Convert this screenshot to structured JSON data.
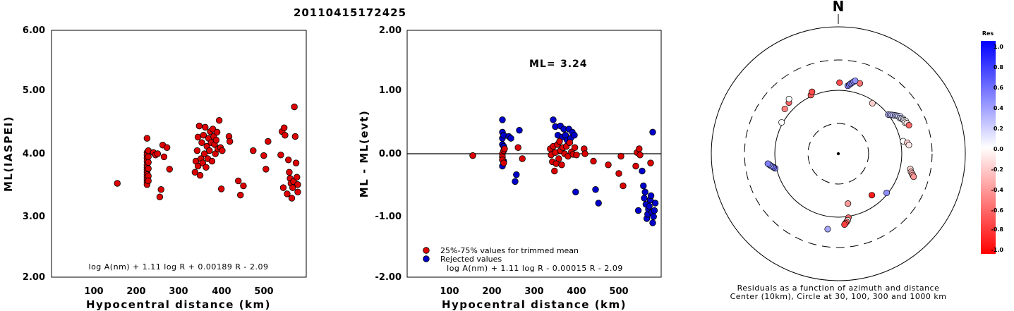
{
  "title": "20110415172425",
  "colors": {
    "event": "#dd0000",
    "rejected": "#0000cc",
    "positive": "#0000ff",
    "negative": "#ff0000"
  },
  "chart_data": [
    {
      "type": "scatter",
      "name_hint": "left",
      "xlabel": "Hypocentral distance (km)",
      "ylabel": "ML(IASPEI)",
      "xlim": [
        0,
        600
      ],
      "ylim": [
        2.0,
        6.0
      ],
      "xticks": [
        "100",
        "200",
        "300",
        "400",
        "500"
      ],
      "yticks": [
        "2.00",
        "3.00",
        "4.00",
        "5.00",
        "6.00"
      ],
      "formula": "log A(nm) + 1.11 log R + 0.00189 R - 2.09",
      "points": [
        [
          155,
          3.52
        ],
        [
          225,
          4.25
        ],
        [
          225,
          4.02
        ],
        [
          225,
          3.98
        ],
        [
          225,
          3.93
        ],
        [
          225,
          3.88
        ],
        [
          225,
          3.82
        ],
        [
          225,
          3.78
        ],
        [
          225,
          3.74
        ],
        [
          225,
          3.7
        ],
        [
          225,
          3.66
        ],
        [
          225,
          3.62
        ],
        [
          225,
          3.58
        ],
        [
          225,
          3.54
        ],
        [
          225,
          3.5
        ],
        [
          228,
          4.05
        ],
        [
          228,
          3.95
        ],
        [
          228,
          3.86
        ],
        [
          228,
          3.76
        ],
        [
          228,
          3.64
        ],
        [
          228,
          3.56
        ],
        [
          240,
          4.02
        ],
        [
          245,
          3.98
        ],
        [
          250,
          4.0
        ],
        [
          255,
          3.3
        ],
        [
          258,
          3.42
        ],
        [
          262,
          4.14
        ],
        [
          265,
          3.95
        ],
        [
          272,
          4.1
        ],
        [
          278,
          3.75
        ],
        [
          338,
          3.7
        ],
        [
          340,
          3.88
        ],
        [
          343,
          4.05
        ],
        [
          345,
          4.27
        ],
        [
          345,
          3.8
        ],
        [
          348,
          4.45
        ],
        [
          350,
          3.65
        ],
        [
          352,
          3.92
        ],
        [
          354,
          4.18
        ],
        [
          356,
          3.85
        ],
        [
          358,
          4.3
        ],
        [
          360,
          4.0
        ],
        [
          362,
          4.43
        ],
        [
          364,
          3.78
        ],
        [
          366,
          4.12
        ],
        [
          368,
          3.92
        ],
        [
          370,
          4.25
        ],
        [
          372,
          4.05
        ],
        [
          374,
          4.36
        ],
        [
          376,
          4.18
        ],
        [
          378,
          3.88
        ],
        [
          380,
          4.4
        ],
        [
          382,
          4.28
        ],
        [
          384,
          4.15
        ],
        [
          386,
          4.0
        ],
        [
          388,
          4.22
        ],
        [
          390,
          4.35
        ],
        [
          392,
          4.08
        ],
        [
          395,
          4.54
        ],
        [
          398,
          4.1
        ],
        [
          400,
          3.43
        ],
        [
          402,
          4.05
        ],
        [
          418,
          4.28
        ],
        [
          420,
          4.2
        ],
        [
          440,
          3.56
        ],
        [
          445,
          3.33
        ],
        [
          452,
          3.48
        ],
        [
          475,
          4.05
        ],
        [
          500,
          3.97
        ],
        [
          505,
          3.75
        ],
        [
          510,
          4.2
        ],
        [
          540,
          3.98
        ],
        [
          543,
          4.36
        ],
        [
          546,
          3.45
        ],
        [
          548,
          4.42
        ],
        [
          550,
          4.3
        ],
        [
          555,
          3.35
        ],
        [
          558,
          3.9
        ],
        [
          560,
          3.7
        ],
        [
          562,
          3.6
        ],
        [
          564,
          3.52
        ],
        [
          566,
          3.28
        ],
        [
          568,
          3.45
        ],
        [
          570,
          3.55
        ],
        [
          572,
          4.76
        ],
        [
          574,
          4.28
        ],
        [
          576,
          3.85
        ],
        [
          578,
          3.62
        ],
        [
          580,
          3.38
        ],
        [
          580,
          3.5
        ]
      ]
    },
    {
      "type": "scatter",
      "name_hint": "middle",
      "xlabel": "Hypocentral distance (km)",
      "ylabel": "ML - ML(evt)",
      "xlim": [
        0,
        600
      ],
      "ylim": [
        -2.0,
        2.0
      ],
      "xticks": [
        "100",
        "200",
        "300",
        "400",
        "500"
      ],
      "yticks": [
        "-2.00",
        "-1.00",
        "0.00",
        "1.00",
        "2.00"
      ],
      "ml_label": "ML=",
      "ml_value": "3.24",
      "formula": "log A(nm) + 1.11 log R - 0.00015 R - 2.09",
      "legend": [
        "25%-75% values for trimmed mean",
        "Rejected values"
      ],
      "accepted": [
        [
          155,
          -0.03
        ],
        [
          225,
          0.0
        ],
        [
          225,
          -0.05
        ],
        [
          225,
          -0.1
        ],
        [
          228,
          0.05
        ],
        [
          228,
          -0.15
        ],
        [
          230,
          0.08
        ],
        [
          262,
          0.1
        ],
        [
          272,
          -0.08
        ],
        [
          338,
          0.08
        ],
        [
          340,
          -0.02
        ],
        [
          343,
          -0.13
        ],
        [
          345,
          0.12
        ],
        [
          348,
          -0.28
        ],
        [
          350,
          0.02
        ],
        [
          352,
          -0.16
        ],
        [
          355,
          0.15
        ],
        [
          358,
          -0.08
        ],
        [
          360,
          0.2
        ],
        [
          362,
          0.05
        ],
        [
          365,
          -0.18
        ],
        [
          368,
          0.1
        ],
        [
          372,
          0.0
        ],
        [
          376,
          0.12
        ],
        [
          380,
          -0.04
        ],
        [
          384,
          0.18
        ],
        [
          388,
          0.03
        ],
        [
          392,
          -0.01
        ],
        [
          396,
          0.1
        ],
        [
          400,
          -0.02
        ],
        [
          418,
          0.08
        ],
        [
          420,
          0.0
        ],
        [
          440,
          -0.12
        ],
        [
          475,
          -0.18
        ],
        [
          500,
          -0.32
        ],
        [
          505,
          -0.04
        ],
        [
          510,
          -0.52
        ],
        [
          540,
          -0.2
        ],
        [
          543,
          0.02
        ],
        [
          548,
          0.08
        ],
        [
          550,
          -0.02
        ],
        [
          575,
          -0.15
        ]
      ],
      "rejected": [
        [
          225,
          0.55
        ],
        [
          225,
          0.35
        ],
        [
          225,
          0.25
        ],
        [
          225,
          0.15
        ],
        [
          225,
          -0.2
        ],
        [
          228,
          0.3
        ],
        [
          228,
          0.12
        ],
        [
          228,
          -0.12
        ],
        [
          240,
          0.28
        ],
        [
          245,
          0.25
        ],
        [
          255,
          -0.45
        ],
        [
          258,
          -0.34
        ],
        [
          265,
          0.38
        ],
        [
          345,
          0.55
        ],
        [
          350,
          0.44
        ],
        [
          356,
          0.3
        ],
        [
          362,
          0.45
        ],
        [
          366,
          0.27
        ],
        [
          370,
          0.4
        ],
        [
          374,
          0.3
        ],
        [
          378,
          0.22
        ],
        [
          382,
          0.4
        ],
        [
          386,
          0.25
        ],
        [
          390,
          0.35
        ],
        [
          395,
          0.3
        ],
        [
          398,
          -0.62
        ],
        [
          445,
          -0.58
        ],
        [
          452,
          -0.8
        ],
        [
          546,
          -0.92
        ],
        [
          555,
          -0.28
        ],
        [
          558,
          -0.52
        ],
        [
          560,
          -0.72
        ],
        [
          562,
          -0.62
        ],
        [
          564,
          -0.82
        ],
        [
          566,
          -1.05
        ],
        [
          568,
          -0.98
        ],
        [
          570,
          -0.9
        ],
        [
          572,
          -0.85
        ],
        [
          574,
          -0.75
        ],
        [
          576,
          -0.68
        ],
        [
          578,
          -0.95
        ],
        [
          580,
          0.35
        ],
        [
          580,
          -1.12
        ],
        [
          582,
          -1.02
        ],
        [
          584,
          -0.92
        ],
        [
          586,
          -0.8
        ]
      ]
    },
    {
      "type": "scatter",
      "name_hint": "polar",
      "north_label": "N",
      "caption": [
        "Residuals as a function of azimuth and distance",
        "Center (10km), Circle at 30, 100, 300 and 1000 km"
      ],
      "colorbar_title": "Res",
      "colorbar_ticks": [
        "1.0",
        "0.8",
        "0.6",
        "0.4",
        "0.2",
        "0.0",
        "-0.2",
        "-0.4",
        "-0.6",
        "-0.8",
        "-1.0"
      ],
      "rings_km": [
        30,
        100,
        300,
        1000
      ],
      "stations": [
        [
          1,
          0.56,
          -0.7
        ],
        [
          17,
          0.58,
          -0.55
        ],
        [
          34,
          0.48,
          -0.2
        ],
        [
          52,
          0.5,
          0.3
        ],
        [
          53,
          0.51,
          0.28
        ],
        [
          54,
          0.52,
          0.26
        ],
        [
          55,
          0.53,
          0.25
        ],
        [
          56,
          0.54,
          0.3
        ],
        [
          57,
          0.55,
          0.22
        ],
        [
          58,
          0.56,
          0.2
        ],
        [
          59,
          0.57,
          0.18
        ],
        [
          60,
          0.56,
          0.15
        ],
        [
          61,
          0.57,
          0.12
        ],
        [
          62,
          0.58,
          0.1
        ],
        [
          63,
          0.58,
          0.05
        ],
        [
          64,
          0.59,
          0.0
        ],
        [
          65,
          0.58,
          -0.05
        ],
        [
          66,
          0.59,
          -0.1
        ],
        [
          68,
          0.6,
          -0.6
        ],
        [
          79,
          0.52,
          0.0
        ],
        [
          81,
          0.55,
          -0.2
        ],
        [
          83,
          0.56,
          -0.1
        ],
        [
          102,
          0.58,
          -0.15
        ],
        [
          104,
          0.59,
          -0.25
        ],
        [
          105,
          0.6,
          -0.3
        ],
        [
          106,
          0.61,
          -0.35
        ],
        [
          107,
          0.62,
          -0.42
        ],
        [
          129,
          0.49,
          0.45
        ],
        [
          141,
          0.42,
          -0.9
        ],
        [
          169,
          0.4,
          -0.4
        ],
        [
          171,
          0.51,
          -0.6
        ],
        [
          172,
          0.53,
          0.0
        ],
        [
          173,
          0.54,
          -0.55
        ],
        [
          174,
          0.55,
          -0.65
        ],
        [
          175,
          0.56,
          -0.75
        ],
        [
          188,
          0.6,
          0.35
        ],
        [
          257,
          0.51,
          0.45
        ],
        [
          258,
          0.52,
          0.5
        ],
        [
          259,
          0.53,
          0.55
        ],
        [
          260,
          0.54,
          0.4
        ],
        [
          261,
          0.55,
          0.45
        ],
        [
          262,
          0.56,
          0.5
        ],
        [
          299,
          0.51,
          0.0
        ],
        [
          310,
          0.55,
          -0.5
        ],
        [
          316,
          0.56,
          -0.6
        ],
        [
          318,
          0.58,
          0.0
        ],
        [
          335,
          0.51,
          -0.65
        ],
        [
          337,
          0.53,
          -0.7
        ],
        [
          8,
          0.54,
          0.5
        ],
        [
          9,
          0.55,
          0.45
        ],
        [
          10,
          0.56,
          0.55
        ],
        [
          11,
          0.57,
          0.4
        ],
        [
          12,
          0.58,
          0.5
        ],
        [
          13,
          0.59,
          0.42
        ]
      ]
    }
  ]
}
